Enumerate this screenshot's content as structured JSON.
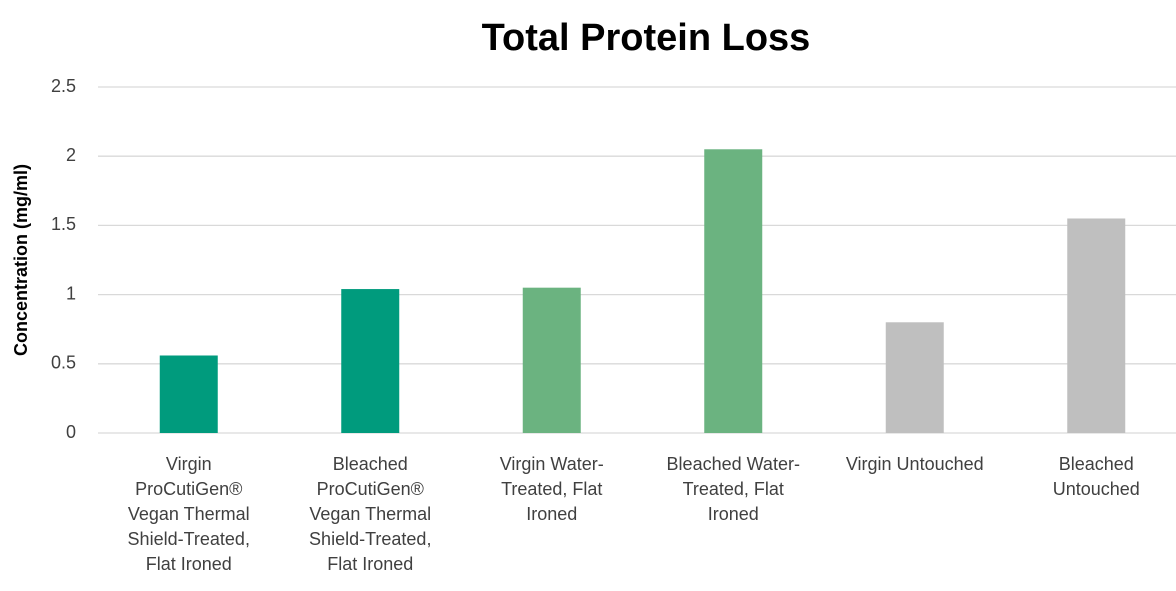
{
  "chart_data": {
    "type": "bar",
    "title": "Total Protein Loss",
    "y_label": "Concentration (mg/ml)",
    "categories": [
      "Virgin ProCutiGen® Vegan Thermal Shield-Treated, Flat Ironed",
      "Bleached ProCutiGen® Vegan Thermal Shield-Treated, Flat Ironed",
      "Virgin Water-Treated, Flat Ironed",
      "Bleached Water-Treated, Flat Ironed",
      "Virgin Untouched",
      "Bleached Untouched"
    ],
    "values": [
      0.56,
      1.04,
      1.05,
      2.05,
      0.8,
      1.55
    ],
    "colors": [
      "#009b7d",
      "#009b7d",
      "#6bb380",
      "#6bb380",
      "#bfbfbf",
      "#bfbfbf"
    ],
    "ylim": [
      0,
      2.5
    ],
    "yticks": [
      0,
      0.5,
      1,
      1.5,
      2,
      2.5
    ],
    "grid": true
  }
}
